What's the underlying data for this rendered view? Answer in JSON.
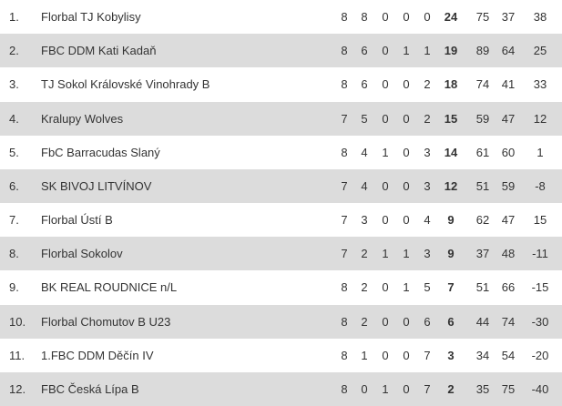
{
  "table": {
    "rows": [
      [
        "1.",
        "Florbal TJ Kobylisy",
        8,
        8,
        0,
        0,
        0,
        24,
        75,
        37,
        38
      ],
      [
        "2.",
        "FBC DDM Kati Kadaň",
        8,
        6,
        0,
        1,
        1,
        19,
        89,
        64,
        25
      ],
      [
        "3.",
        "TJ Sokol Královské Vinohrady B",
        8,
        6,
        0,
        0,
        2,
        18,
        74,
        41,
        33
      ],
      [
        "4.",
        "Kralupy Wolves",
        7,
        5,
        0,
        0,
        2,
        15,
        59,
        47,
        12
      ],
      [
        "5.",
        "FbC Barracudas Slaný",
        8,
        4,
        1,
        0,
        3,
        14,
        61,
        60,
        1
      ],
      [
        "6.",
        "SK BIVOJ LITVÍNOV",
        7,
        4,
        0,
        0,
        3,
        12,
        51,
        59,
        -8
      ],
      [
        "7.",
        "Florbal Ústí B",
        7,
        3,
        0,
        0,
        4,
        9,
        62,
        47,
        15
      ],
      [
        "8.",
        "Florbal Sokolov",
        7,
        2,
        1,
        1,
        3,
        9,
        37,
        48,
        -11
      ],
      [
        "9.",
        "BK REAL ROUDNICE n/L",
        8,
        2,
        0,
        1,
        5,
        7,
        51,
        66,
        -15
      ],
      [
        "10.",
        "Florbal Chomutov B U23",
        8,
        2,
        0,
        0,
        6,
        6,
        44,
        74,
        -30
      ],
      [
        "11.",
        "1.FBC DDM Děčín IV",
        8,
        1,
        0,
        0,
        7,
        3,
        34,
        54,
        -20
      ],
      [
        "12.",
        "FBC Česká Lípa B",
        8,
        0,
        1,
        0,
        7,
        2,
        35,
        75,
        -40
      ]
    ]
  }
}
